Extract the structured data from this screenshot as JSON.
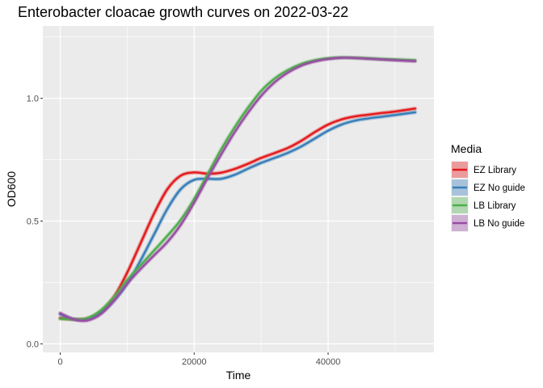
{
  "chart_data": {
    "type": "line",
    "title": "Enterobacter cloacae growth curves on 2022-03-22",
    "xlabel": "Time",
    "ylabel": "OD600",
    "xlim": [
      -2600,
      55800
    ],
    "ylim": [
      -0.035,
      1.295
    ],
    "x_ticks": [
      0,
      20000,
      40000
    ],
    "x_tick_labels": [
      "0",
      "20000",
      "40000"
    ],
    "y_ticks": [
      0.0,
      0.5,
      1.0
    ],
    "y_tick_labels": [
      "0.0",
      "0.5",
      "1.0"
    ],
    "grid": true,
    "legend": {
      "title": "Media",
      "position": "right"
    },
    "series": [
      {
        "name": "EZ Library",
        "color": "#E41A1C",
        "points": [
          [
            0,
            0.105
          ],
          [
            2000,
            0.1
          ],
          [
            4000,
            0.102
          ],
          [
            6000,
            0.13
          ],
          [
            8000,
            0.19
          ],
          [
            10000,
            0.29
          ],
          [
            12000,
            0.41
          ],
          [
            14000,
            0.53
          ],
          [
            16000,
            0.63
          ],
          [
            18000,
            0.685
          ],
          [
            20000,
            0.698
          ],
          [
            22000,
            0.693
          ],
          [
            24000,
            0.697
          ],
          [
            26000,
            0.712
          ],
          [
            28000,
            0.733
          ],
          [
            30000,
            0.757
          ],
          [
            32000,
            0.777
          ],
          [
            34000,
            0.798
          ],
          [
            36000,
            0.827
          ],
          [
            38000,
            0.862
          ],
          [
            40000,
            0.893
          ],
          [
            42000,
            0.914
          ],
          [
            44000,
            0.926
          ],
          [
            46000,
            0.933
          ],
          [
            48000,
            0.94
          ],
          [
            50000,
            0.946
          ],
          [
            53000,
            0.958
          ]
        ]
      },
      {
        "name": "EZ No guide",
        "color": "#377EB8",
        "points": [
          [
            0,
            0.12
          ],
          [
            2000,
            0.1
          ],
          [
            4000,
            0.1
          ],
          [
            6000,
            0.125
          ],
          [
            8000,
            0.175
          ],
          [
            10000,
            0.245
          ],
          [
            12000,
            0.34
          ],
          [
            14000,
            0.445
          ],
          [
            16000,
            0.55
          ],
          [
            18000,
            0.63
          ],
          [
            20000,
            0.668
          ],
          [
            22000,
            0.672
          ],
          [
            24000,
            0.672
          ],
          [
            26000,
            0.688
          ],
          [
            28000,
            0.713
          ],
          [
            30000,
            0.737
          ],
          [
            32000,
            0.757
          ],
          [
            34000,
            0.778
          ],
          [
            36000,
            0.804
          ],
          [
            38000,
            0.836
          ],
          [
            40000,
            0.868
          ],
          [
            42000,
            0.893
          ],
          [
            44000,
            0.909
          ],
          [
            46000,
            0.918
          ],
          [
            48000,
            0.925
          ],
          [
            50000,
            0.932
          ],
          [
            53000,
            0.943
          ]
        ]
      },
      {
        "name": "LB Library",
        "color": "#4DAF4A",
        "points": [
          [
            0,
            0.102
          ],
          [
            2000,
            0.1
          ],
          [
            4000,
            0.104
          ],
          [
            6000,
            0.135
          ],
          [
            8000,
            0.19
          ],
          [
            10000,
            0.26
          ],
          [
            12000,
            0.32
          ],
          [
            14000,
            0.38
          ],
          [
            16000,
            0.44
          ],
          [
            18000,
            0.505
          ],
          [
            20000,
            0.59
          ],
          [
            22000,
            0.69
          ],
          [
            24000,
            0.79
          ],
          [
            26000,
            0.88
          ],
          [
            28000,
            0.96
          ],
          [
            30000,
            1.03
          ],
          [
            32000,
            1.08
          ],
          [
            34000,
            1.115
          ],
          [
            36000,
            1.14
          ],
          [
            38000,
            1.155
          ],
          [
            40000,
            1.163
          ],
          [
            42000,
            1.166
          ],
          [
            44000,
            1.165
          ],
          [
            46000,
            1.163
          ],
          [
            48000,
            1.16
          ],
          [
            50000,
            1.158
          ],
          [
            53000,
            1.155
          ]
        ]
      },
      {
        "name": "LB No guide",
        "color": "#984EA3",
        "points": [
          [
            0,
            0.125
          ],
          [
            2000,
            0.1
          ],
          [
            4000,
            0.095
          ],
          [
            6000,
            0.12
          ],
          [
            8000,
            0.175
          ],
          [
            10000,
            0.245
          ],
          [
            12000,
            0.305
          ],
          [
            14000,
            0.36
          ],
          [
            16000,
            0.415
          ],
          [
            18000,
            0.485
          ],
          [
            20000,
            0.575
          ],
          [
            22000,
            0.675
          ],
          [
            24000,
            0.77
          ],
          [
            26000,
            0.86
          ],
          [
            28000,
            0.94
          ],
          [
            30000,
            1.01
          ],
          [
            32000,
            1.065
          ],
          [
            34000,
            1.105
          ],
          [
            36000,
            1.133
          ],
          [
            38000,
            1.15
          ],
          [
            40000,
            1.16
          ],
          [
            42000,
            1.165
          ],
          [
            44000,
            1.164
          ],
          [
            46000,
            1.161
          ],
          [
            48000,
            1.158
          ],
          [
            50000,
            1.155
          ],
          [
            53000,
            1.151
          ]
        ]
      }
    ]
  }
}
